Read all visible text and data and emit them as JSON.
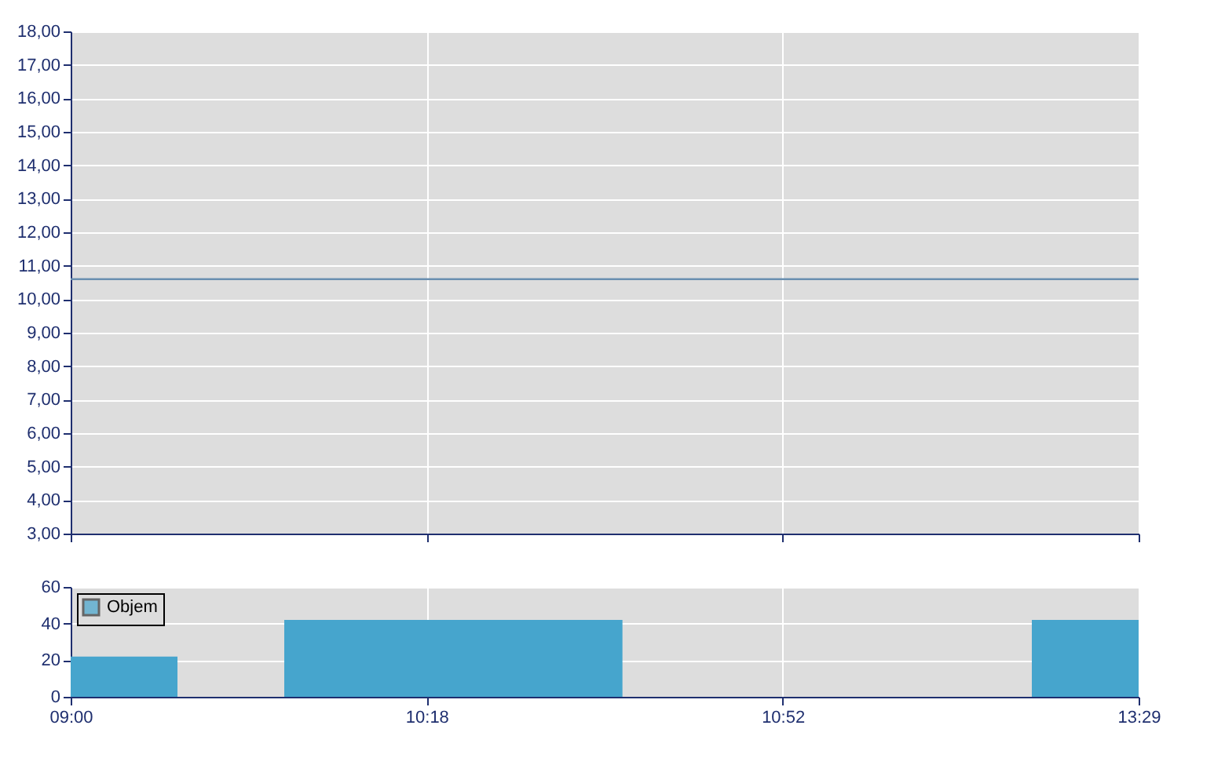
{
  "chart_data": [
    {
      "type": "line",
      "categories": [
        null,
        null,
        null,
        null
      ],
      "series": [
        {
          "color": "#6a8fb0",
          "values": [
            10.6,
            10.6,
            10.6,
            10.6
          ]
        }
      ],
      "ylim": [
        3,
        18
      ],
      "yticks": [
        {
          "value": 3,
          "label": "3,00"
        },
        {
          "value": 4,
          "label": "4,00"
        },
        {
          "value": 5,
          "label": "5,00"
        },
        {
          "value": 6,
          "label": "6,00"
        },
        {
          "value": 7,
          "label": "7,00"
        },
        {
          "value": 8,
          "label": "8,00"
        },
        {
          "value": 9,
          "label": "9,00"
        },
        {
          "value": 10,
          "label": "10,00"
        },
        {
          "value": 11,
          "label": "11,00"
        },
        {
          "value": 12,
          "label": "12,00"
        },
        {
          "value": 13,
          "label": "13,00"
        },
        {
          "value": 14,
          "label": "14,00"
        },
        {
          "value": 15,
          "label": "15,00"
        },
        {
          "value": 16,
          "label": "16,00"
        },
        {
          "value": 17,
          "label": "17,00"
        },
        {
          "value": 18,
          "label": "18,00"
        }
      ],
      "grid": true,
      "tick_labels": "y",
      "legend": false
    },
    {
      "type": "area",
      "categories": [
        "09:00",
        null,
        null,
        null,
        null,
        null,
        null,
        null,
        null,
        null,
        null,
        null,
        null,
        null,
        null,
        null,
        null,
        null,
        null,
        null,
        "10:18",
        null,
        null,
        null,
        null,
        null,
        null,
        null,
        null,
        null,
        null,
        null,
        null,
        null,
        null,
        null,
        null,
        null,
        null,
        null,
        "10:52",
        null,
        null,
        null,
        null,
        null,
        null,
        null,
        null,
        null,
        null,
        null,
        null,
        null,
        null,
        null,
        null,
        null,
        null,
        null,
        "13:29"
      ],
      "series": [
        {
          "name": "Objem",
          "color": "#46a5cd",
          "values": [
            22,
            22,
            22,
            22,
            22,
            22,
            0,
            0,
            0,
            0,
            0,
            0,
            42,
            42,
            42,
            42,
            42,
            42,
            42,
            42,
            42,
            42,
            42,
            42,
            42,
            42,
            42,
            42,
            42,
            42,
            42,
            0,
            0,
            0,
            0,
            0,
            0,
            0,
            0,
            0,
            0,
            0,
            0,
            0,
            0,
            0,
            0,
            0,
            0,
            0,
            0,
            0,
            0,
            0,
            42,
            42,
            42,
            42,
            42,
            42,
            42
          ]
        }
      ],
      "ylim": [
        0,
        60
      ],
      "yticks": [
        0,
        20,
        40,
        60
      ],
      "grid": true,
      "legend": "top left"
    }
  ]
}
